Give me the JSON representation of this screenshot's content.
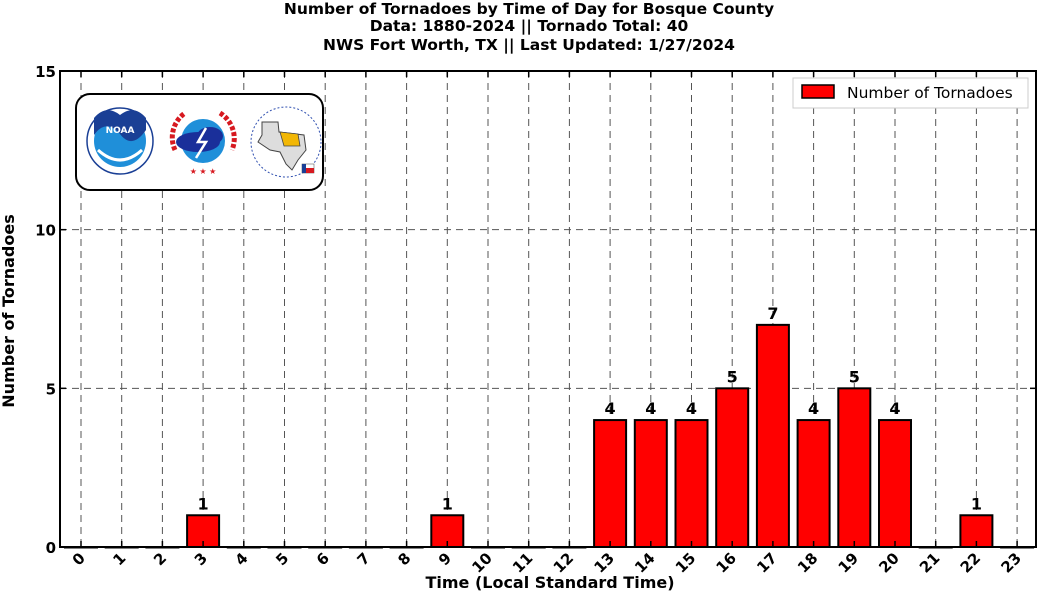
{
  "chart_data": {
    "type": "bar",
    "title": [
      "Number of Tornadoes by Time of Day for Bosque County",
      "Data: 1880-2024 || Tornado Total: 40",
      "NWS Fort Worth, TX || Last Updated: 1/27/2024"
    ],
    "xlabel": "Time (Local Standard Time)",
    "ylabel": "Number of Tornadoes",
    "categories": [
      "0",
      "1",
      "2",
      "3",
      "4",
      "5",
      "6",
      "7",
      "8",
      "9",
      "10",
      "11",
      "12",
      "13",
      "14",
      "15",
      "16",
      "17",
      "18",
      "19",
      "20",
      "21",
      "22",
      "23"
    ],
    "series": [
      {
        "name": "Number of Tornadoes",
        "values": [
          0,
          0,
          0,
          1,
          0,
          0,
          0,
          0,
          0,
          1,
          0,
          0,
          0,
          4,
          4,
          4,
          5,
          7,
          4,
          5,
          4,
          0,
          1,
          0
        ],
        "color": "#ff0000"
      }
    ],
    "ylim": [
      0,
      15
    ],
    "yticks": [
      "0",
      "5",
      "10",
      "15"
    ],
    "grid": true,
    "legend_position": "top-right",
    "logos": [
      "noaa-logo",
      "national-weather-service-logo",
      "nws-fort-worth-texas-logo"
    ]
  }
}
